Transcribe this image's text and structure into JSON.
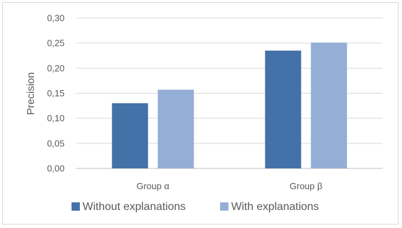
{
  "chart_data": {
    "type": "bar",
    "categories": [
      "Group α",
      "Group β"
    ],
    "series": [
      {
        "name": "Without explanations",
        "values": [
          0.13,
          0.235
        ],
        "color": "#4472a8"
      },
      {
        "name": "With explanations",
        "values": [
          0.157,
          0.251
        ],
        "color": "#95aed6"
      }
    ],
    "ylabel": "Precision",
    "xlabel": "",
    "ylim": [
      0,
      0.3
    ],
    "yticks": [
      "0,00",
      "0,05",
      "0,10",
      "0,15",
      "0,20",
      "0,25",
      "0,30"
    ],
    "grid": true,
    "legend_position": "bottom"
  }
}
